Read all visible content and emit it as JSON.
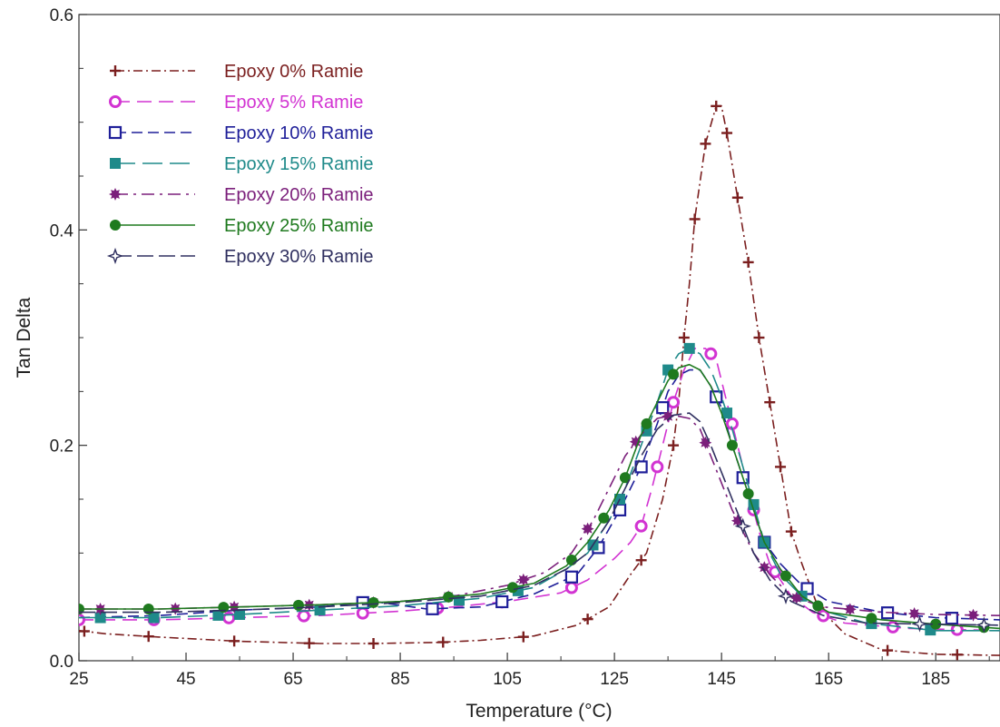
{
  "chart_data": {
    "type": "line",
    "title": "",
    "xlabel": "Temperature (°C)",
    "ylabel": "Tan Delta",
    "xlim": [
      25,
      197
    ],
    "ylim": [
      0.0,
      0.6
    ],
    "x_ticks": [
      "25",
      "45",
      "65",
      "85",
      "105",
      "125",
      "145",
      "165",
      "185"
    ],
    "y_ticks": [
      "0.0",
      "0.2",
      "0.4",
      "0.6"
    ],
    "legend_position": "top-left",
    "grid": false,
    "series": [
      {
        "name": "Epoxy 0% Ramie",
        "color": "#7b1f1f",
        "marker": "plus",
        "dash": "10,4,2,4",
        "points": [
          [
            25,
            0.028
          ],
          [
            30,
            0.025
          ],
          [
            40,
            0.022
          ],
          [
            55,
            0.018
          ],
          [
            70,
            0.016
          ],
          [
            80,
            0.016
          ],
          [
            92,
            0.017
          ],
          [
            100,
            0.019
          ],
          [
            110,
            0.023
          ],
          [
            118,
            0.033
          ],
          [
            124,
            0.05
          ],
          [
            128,
            0.08
          ],
          [
            131,
            0.1
          ],
          [
            134,
            0.15
          ],
          [
            136,
            0.2
          ],
          [
            137,
            0.24
          ],
          [
            138,
            0.3
          ],
          [
            139,
            0.35
          ],
          [
            140,
            0.41
          ],
          [
            142,
            0.48
          ],
          [
            144,
            0.515
          ],
          [
            145,
            0.515
          ],
          [
            146,
            0.49
          ],
          [
            148,
            0.43
          ],
          [
            150,
            0.37
          ],
          [
            152,
            0.3
          ],
          [
            154,
            0.24
          ],
          [
            156,
            0.18
          ],
          [
            158,
            0.12
          ],
          [
            160,
            0.09
          ],
          [
            163,
            0.05
          ],
          [
            168,
            0.025
          ],
          [
            175,
            0.01
          ],
          [
            185,
            0.006
          ],
          [
            197,
            0.005
          ]
        ],
        "markers_x": [
          26,
          38,
          54,
          68,
          80,
          93,
          108,
          120,
          130,
          136,
          138,
          140,
          142,
          144,
          146,
          148,
          150,
          152,
          154,
          156,
          158,
          164,
          176,
          189
        ]
      },
      {
        "name": "Epoxy 5% Ramie",
        "color": "#d233d2",
        "marker": "circle",
        "dash": "16,8",
        "points": [
          [
            25,
            0.038
          ],
          [
            40,
            0.038
          ],
          [
            55,
            0.04
          ],
          [
            70,
            0.042
          ],
          [
            85,
            0.046
          ],
          [
            95,
            0.05
          ],
          [
            105,
            0.055
          ],
          [
            115,
            0.063
          ],
          [
            120,
            0.075
          ],
          [
            125,
            0.095
          ],
          [
            128,
            0.11
          ],
          [
            130,
            0.125
          ],
          [
            132,
            0.16
          ],
          [
            134,
            0.2
          ],
          [
            136,
            0.24
          ],
          [
            138,
            0.27
          ],
          [
            140,
            0.29
          ],
          [
            142,
            0.29
          ],
          [
            144,
            0.28
          ],
          [
            146,
            0.24
          ],
          [
            148,
            0.2
          ],
          [
            150,
            0.16
          ],
          [
            152,
            0.12
          ],
          [
            154,
            0.09
          ],
          [
            158,
            0.06
          ],
          [
            162,
            0.045
          ],
          [
            168,
            0.035
          ],
          [
            180,
            0.03
          ],
          [
            197,
            0.028
          ]
        ],
        "markers_x": [
          25,
          39,
          53,
          67,
          78,
          92,
          104,
          117,
          130,
          133,
          136,
          143,
          147,
          151,
          155,
          164,
          177,
          189
        ]
      },
      {
        "name": "Epoxy 10% Ramie",
        "color": "#1f1f99",
        "marker": "square",
        "dash": "12,6",
        "points": [
          [
            25,
            0.04
          ],
          [
            40,
            0.042
          ],
          [
            55,
            0.047
          ],
          [
            70,
            0.05
          ],
          [
            80,
            0.055
          ],
          [
            90,
            0.048
          ],
          [
            100,
            0.05
          ],
          [
            110,
            0.062
          ],
          [
            118,
            0.08
          ],
          [
            122,
            0.105
          ],
          [
            126,
            0.14
          ],
          [
            130,
            0.18
          ],
          [
            133,
            0.22
          ],
          [
            135,
            0.25
          ],
          [
            137,
            0.265
          ],
          [
            139,
            0.27
          ],
          [
            141,
            0.27
          ],
          [
            143,
            0.255
          ],
          [
            145,
            0.235
          ],
          [
            147,
            0.2
          ],
          [
            149,
            0.17
          ],
          [
            151,
            0.14
          ],
          [
            153,
            0.11
          ],
          [
            156,
            0.09
          ],
          [
            160,
            0.07
          ],
          [
            165,
            0.055
          ],
          [
            175,
            0.045
          ],
          [
            185,
            0.04
          ],
          [
            197,
            0.038
          ]
        ],
        "markers_x": [
          78,
          91,
          104,
          117,
          122,
          126,
          130,
          134,
          144,
          149,
          153,
          161,
          176,
          188
        ]
      },
      {
        "name": "Epoxy 15% Ramie",
        "color": "#1f8a8a",
        "marker": "square-filled",
        "dash": "22,8",
        "points": [
          [
            25,
            0.04
          ],
          [
            40,
            0.04
          ],
          [
            55,
            0.043
          ],
          [
            70,
            0.047
          ],
          [
            85,
            0.051
          ],
          [
            100,
            0.058
          ],
          [
            110,
            0.068
          ],
          [
            116,
            0.085
          ],
          [
            120,
            0.1
          ],
          [
            124,
            0.13
          ],
          [
            127,
            0.16
          ],
          [
            130,
            0.2
          ],
          [
            133,
            0.24
          ],
          [
            135,
            0.27
          ],
          [
            137,
            0.285
          ],
          [
            139,
            0.29
          ],
          [
            141,
            0.285
          ],
          [
            143,
            0.27
          ],
          [
            145,
            0.245
          ],
          [
            147,
            0.215
          ],
          [
            149,
            0.18
          ],
          [
            151,
            0.145
          ],
          [
            153,
            0.11
          ],
          [
            156,
            0.08
          ],
          [
            160,
            0.06
          ],
          [
            165,
            0.045
          ],
          [
            172,
            0.035
          ],
          [
            185,
            0.028
          ],
          [
            197,
            0.028
          ]
        ],
        "markers_x": [
          29,
          39,
          51,
          55,
          70,
          96,
          107,
          121,
          126,
          131,
          135,
          139,
          146,
          151,
          153,
          160,
          173,
          184
        ]
      },
      {
        "name": "Epoxy 20% Ramie",
        "color": "#7b1f7b",
        "marker": "star",
        "dash": "14,6,3,6",
        "points": [
          [
            25,
            0.048
          ],
          [
            40,
            0.048
          ],
          [
            55,
            0.05
          ],
          [
            70,
            0.052
          ],
          [
            85,
            0.055
          ],
          [
            95,
            0.06
          ],
          [
            105,
            0.07
          ],
          [
            112,
            0.082
          ],
          [
            117,
            0.1
          ],
          [
            121,
            0.13
          ],
          [
            124,
            0.16
          ],
          [
            127,
            0.19
          ],
          [
            130,
            0.21
          ],
          [
            133,
            0.225
          ],
          [
            136,
            0.228
          ],
          [
            139,
            0.225
          ],
          [
            141,
            0.215
          ],
          [
            143,
            0.19
          ],
          [
            145,
            0.165
          ],
          [
            147,
            0.14
          ],
          [
            149,
            0.12
          ],
          [
            151,
            0.1
          ],
          [
            154,
            0.08
          ],
          [
            158,
            0.06
          ],
          [
            164,
            0.05
          ],
          [
            175,
            0.045
          ],
          [
            185,
            0.043
          ],
          [
            197,
            0.042
          ]
        ],
        "markers_x": [
          29,
          43,
          54,
          68,
          80,
          94,
          108,
          120,
          129,
          135,
          142,
          148,
          153,
          159,
          169,
          181,
          192
        ]
      },
      {
        "name": "Epoxy 25% Ramie",
        "color": "#1f7a1f",
        "marker": "circle-filled",
        "dash": "",
        "points": [
          [
            25,
            0.048
          ],
          [
            40,
            0.048
          ],
          [
            55,
            0.05
          ],
          [
            70,
            0.052
          ],
          [
            85,
            0.055
          ],
          [
            100,
            0.062
          ],
          [
            110,
            0.072
          ],
          [
            116,
            0.088
          ],
          [
            120,
            0.11
          ],
          [
            124,
            0.14
          ],
          [
            127,
            0.17
          ],
          [
            130,
            0.21
          ],
          [
            133,
            0.24
          ],
          [
            135,
            0.26
          ],
          [
            137,
            0.272
          ],
          [
            139,
            0.275
          ],
          [
            141,
            0.27
          ],
          [
            143,
            0.255
          ],
          [
            145,
            0.23
          ],
          [
            147,
            0.2
          ],
          [
            149,
            0.17
          ],
          [
            151,
            0.14
          ],
          [
            153,
            0.11
          ],
          [
            156,
            0.085
          ],
          [
            160,
            0.06
          ],
          [
            165,
            0.045
          ],
          [
            175,
            0.038
          ],
          [
            185,
            0.034
          ],
          [
            197,
            0.03
          ]
        ],
        "markers_x": [
          25,
          38,
          52,
          66,
          80,
          94,
          106,
          117,
          123,
          127,
          131,
          136,
          147,
          150,
          157,
          163,
          173,
          185,
          194
        ]
      },
      {
        "name": "Epoxy 30% Ramie",
        "color": "#303060",
        "marker": "star-open",
        "dash": "18,6",
        "points": [
          [
            25,
            0.045
          ],
          [
            40,
            0.045
          ],
          [
            55,
            0.047
          ],
          [
            70,
            0.05
          ],
          [
            85,
            0.054
          ],
          [
            100,
            0.06
          ],
          [
            110,
            0.07
          ],
          [
            116,
            0.085
          ],
          [
            120,
            0.1
          ],
          [
            124,
            0.13
          ],
          [
            127,
            0.16
          ],
          [
            130,
            0.19
          ],
          [
            133,
            0.215
          ],
          [
            136,
            0.228
          ],
          [
            139,
            0.23
          ],
          [
            141,
            0.222
          ],
          [
            143,
            0.2
          ],
          [
            145,
            0.175
          ],
          [
            147,
            0.15
          ],
          [
            149,
            0.125
          ],
          [
            151,
            0.1
          ],
          [
            154,
            0.075
          ],
          [
            158,
            0.055
          ],
          [
            164,
            0.042
          ],
          [
            172,
            0.035
          ],
          [
            185,
            0.034
          ],
          [
            197,
            0.033
          ]
        ],
        "markers_x": [
          149,
          157,
          182,
          194
        ]
      }
    ]
  }
}
